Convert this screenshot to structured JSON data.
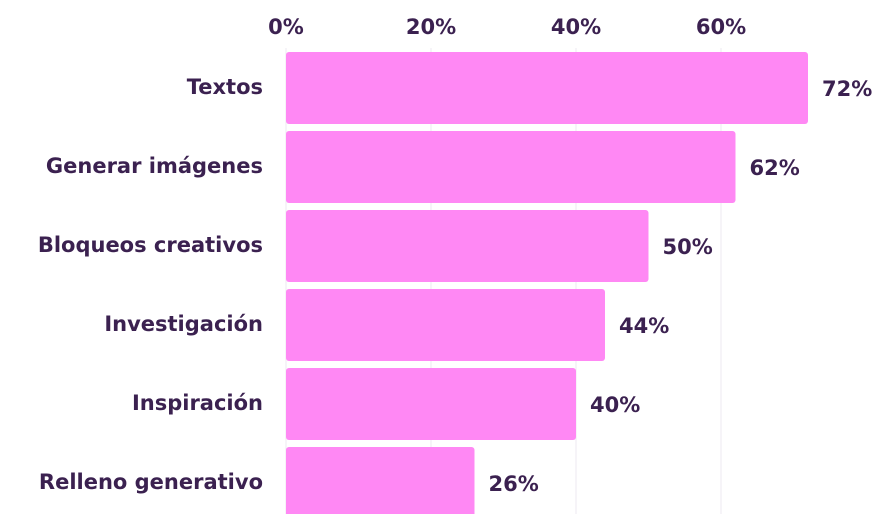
{
  "chart_data": {
    "type": "bar",
    "orientation": "horizontal",
    "categories": [
      "Textos",
      "Generar imágenes",
      "Bloqueos creativos",
      "Investigación",
      "Inspiración",
      "Relleno generativo"
    ],
    "values": [
      72,
      62,
      50,
      44,
      40,
      26
    ],
    "value_labels": [
      "72%",
      "62%",
      "50%",
      "44%",
      "40%",
      "26%"
    ],
    "color": "#ff88f4",
    "xlim": [
      0,
      80
    ],
    "xticks": [
      {
        "value": 0,
        "label": "0%"
      },
      {
        "value": 20,
        "label": "20%"
      },
      {
        "value": 40,
        "label": "40%"
      },
      {
        "value": 60,
        "label": "60%"
      }
    ],
    "grid": true
  }
}
